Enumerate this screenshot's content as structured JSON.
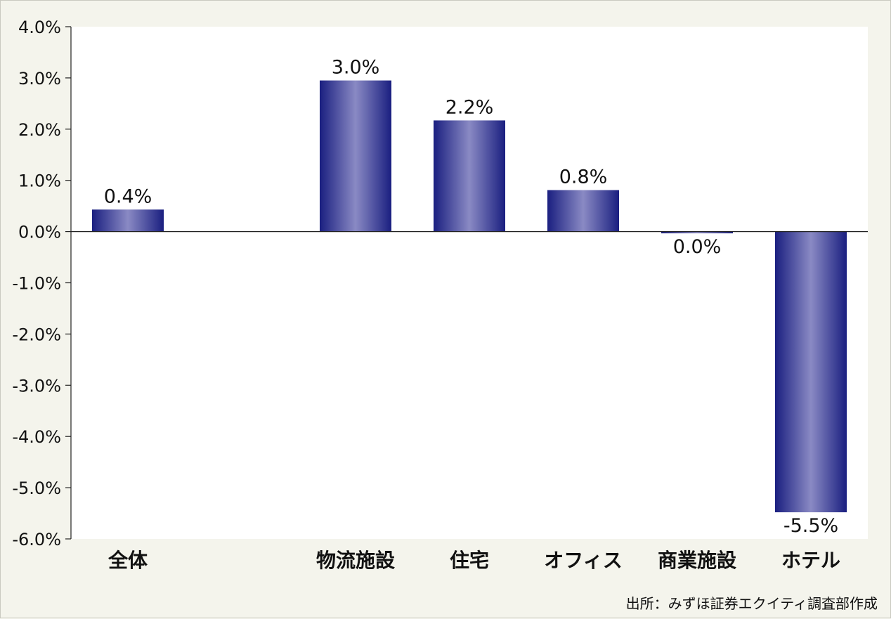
{
  "chart_data": {
    "type": "bar",
    "categories": [
      "全体",
      "",
      "物流施設",
      "住宅",
      "オフィス",
      "商業施設",
      "ホテル"
    ],
    "values": [
      0.43,
      null,
      2.95,
      2.17,
      0.81,
      -0.03,
      -5.48
    ],
    "value_labels": [
      "0.4%",
      "",
      "3.0%",
      "2.2%",
      "0.8%",
      "0.0%",
      "-5.5%"
    ],
    "y_ticks": [
      "4.0%",
      "3.0%",
      "2.0%",
      "1.0%",
      "0.0%",
      "-1.0%",
      "-2.0%",
      "-3.0%",
      "-4.0%",
      "-5.0%",
      "-6.0%"
    ],
    "ylim": [
      -6,
      4
    ],
    "bar_color_dark": "#1a1f80",
    "bar_color_light": "#8a8ac4",
    "grid": false
  },
  "source_text": "出所：みずほ証券エクイティ調査部作成"
}
